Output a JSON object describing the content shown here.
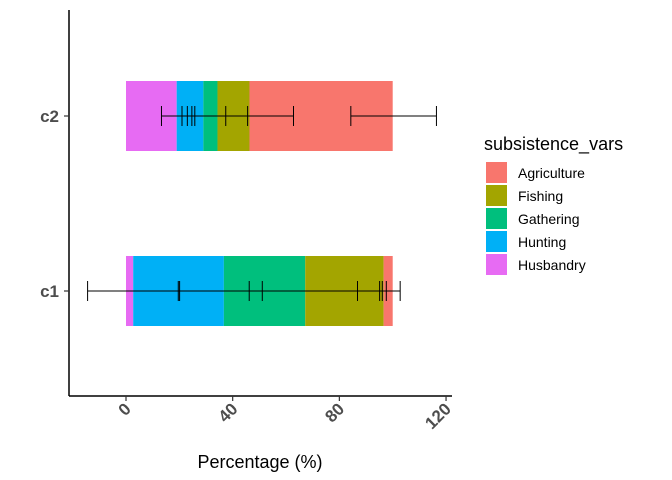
{
  "chart_data": {
    "type": "bar",
    "orientation": "horizontal",
    "stacked": true,
    "xlabel": "Percentage (%)",
    "ylabel": "",
    "xlim": [
      -20,
      122
    ],
    "x_ticks": [
      "0",
      "40",
      "80",
      "120"
    ],
    "x_tick_values": [
      0,
      40,
      80,
      120
    ],
    "categories": [
      "c2",
      "c1"
    ],
    "legend_title": "subsistence_vars",
    "legend_position": "right",
    "grid": false,
    "series": [
      {
        "name": "Husbandry",
        "color": "#E76BF3",
        "values": [
          19,
          2.7
        ]
      },
      {
        "name": "Hunting",
        "color": "#00B0F6",
        "values": [
          10,
          34
        ]
      },
      {
        "name": "Gathering",
        "color": "#00BF7D",
        "values": [
          5.3,
          30.5
        ]
      },
      {
        "name": "Fishing",
        "color": "#A3A500",
        "values": [
          12,
          29.4
        ]
      },
      {
        "name": "Agriculture",
        "color": "#F8766D",
        "values": [
          53.7,
          3.4
        ]
      }
    ],
    "error_bars": [
      {
        "category": "c2",
        "series": "Husbandry",
        "low": 13.3,
        "high": 24.7
      },
      {
        "category": "c2",
        "series": "Hunting",
        "low": 21,
        "high": 37.4
      },
      {
        "category": "c2",
        "series": "Gathering",
        "low": 23,
        "high": 45.6
      },
      {
        "category": "c2",
        "series": "Fishing",
        "low": 25.8,
        "high": 62.8
      },
      {
        "category": "c2",
        "series": "Agriculture",
        "low": 84.3,
        "high": 116.4
      },
      {
        "category": "c1",
        "series": "Husbandry",
        "low": 96.1,
        "high": 97.6
      },
      {
        "category": "c1",
        "series": "Hunting",
        "low": 19.6,
        "high": 86.8
      },
      {
        "category": "c1",
        "series": "Gathering",
        "low": 20.1,
        "high": 95.1
      },
      {
        "category": "c1",
        "series": "Fishing",
        "low": 46.2,
        "high": 102.8
      },
      {
        "category": "c1",
        "series": "Agriculture",
        "low": -14.4,
        "high": 51.1
      }
    ],
    "legend_order": [
      "Agriculture",
      "Fishing",
      "Gathering",
      "Hunting",
      "Husbandry"
    ]
  }
}
